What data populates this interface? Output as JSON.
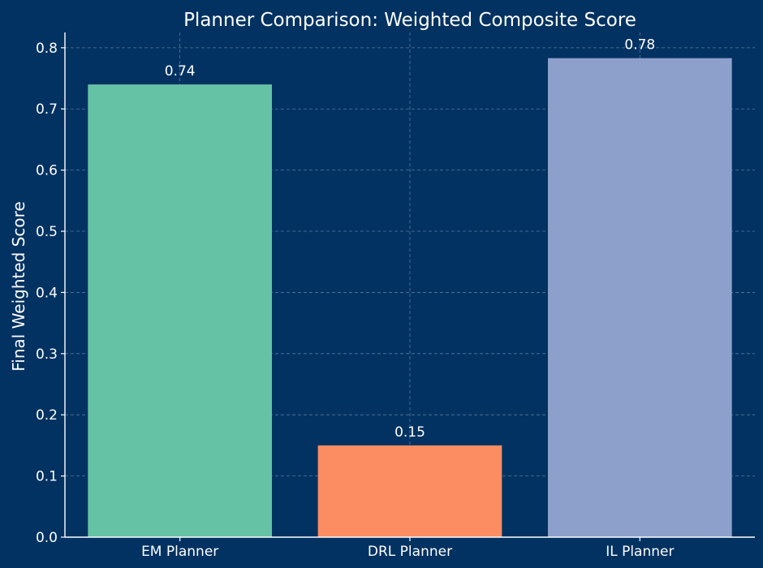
{
  "chart_data": {
    "type": "bar",
    "title": "Planner Comparison: Weighted Composite Score",
    "xlabel": "",
    "ylabel": "Final Weighted Score",
    "categories": [
      "EM Planner",
      "DRL Planner",
      "IL Planner"
    ],
    "values": [
      0.74,
      0.15,
      0.783
    ],
    "value_labels": [
      "0.74",
      "0.15",
      "0.78"
    ],
    "bar_colors": [
      "#66c2a5",
      "#fc8d62",
      "#8da0cb"
    ],
    "ylim": [
      0,
      0.825
    ],
    "yticks": [
      0.0,
      0.1,
      0.2,
      0.3,
      0.4,
      0.5,
      0.6,
      0.7,
      0.8
    ],
    "ytick_labels": [
      "0.0",
      "0.1",
      "0.2",
      "0.3",
      "0.4",
      "0.5",
      "0.6",
      "0.7",
      "0.8"
    ],
    "grid": true,
    "background_color": "#023262",
    "text_color": "#ffffff"
  }
}
